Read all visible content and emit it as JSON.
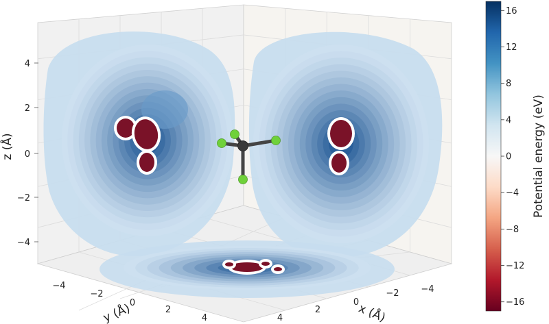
{
  "chart_data": {
    "type": "heatmap",
    "view": "3d-projection",
    "xlabel": "x (Å)",
    "ylabel": "y (Å)",
    "zlabel": "z (Å)",
    "x_ticks": [
      "−4",
      "−2",
      "0",
      "2",
      "4"
    ],
    "y_ticks": [
      "−4",
      "−2",
      "0",
      "2",
      "4"
    ],
    "z_ticks": [
      "−4",
      "−2",
      "0",
      "2",
      "4"
    ],
    "colorbar": {
      "label": "Potential energy (eV)",
      "ticks": [
        "−16",
        "−12",
        "−8",
        "−4",
        "0",
        "4",
        "8",
        "12",
        "16"
      ],
      "colormap": "RdBu",
      "range": [
        -17,
        17
      ],
      "stops": [
        "#67001f",
        "#b2182b",
        "#d6604d",
        "#f4a582",
        "#fddbc7",
        "#f7f7f7",
        "#d1e5f0",
        "#92c5de",
        "#4393c3",
        "#2166ac",
        "#053061"
      ]
    },
    "molecule": {
      "center_atom_color": "#3a3a3a",
      "ligand_atom_color": "#6fd13a"
    },
    "projection_colors": {
      "minimum": "#7a1228",
      "halo": "#ffffff",
      "deep_well": "#2a5f9a",
      "outer": "#c7ddee"
    }
  }
}
